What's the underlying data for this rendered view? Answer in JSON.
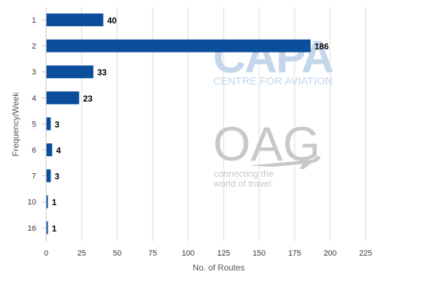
{
  "chart_data": {
    "type": "bar",
    "orientation": "horizontal",
    "categories": [
      "1",
      "2",
      "3",
      "4",
      "5",
      "6",
      "7",
      "10",
      "16"
    ],
    "values": [
      40,
      186,
      33,
      23,
      3,
      4,
      3,
      1,
      1
    ],
    "xlabel": "No. of Routes",
    "ylabel": "Frequency/Week",
    "xlim": [
      0,
      250
    ],
    "xticks": [
      0,
      25,
      50,
      75,
      100,
      125,
      150,
      175,
      200,
      225
    ],
    "grid": "vertical",
    "data_labels": true,
    "bar_color": "#0b4f9c"
  },
  "watermarks": {
    "capa_logo": "CAPA",
    "capa_subtitle": "CENTRE FOR AVIATION",
    "oag_logo": "OAG",
    "oag_tagline_1": "connecting the",
    "oag_tagline_2": "world of travel"
  }
}
